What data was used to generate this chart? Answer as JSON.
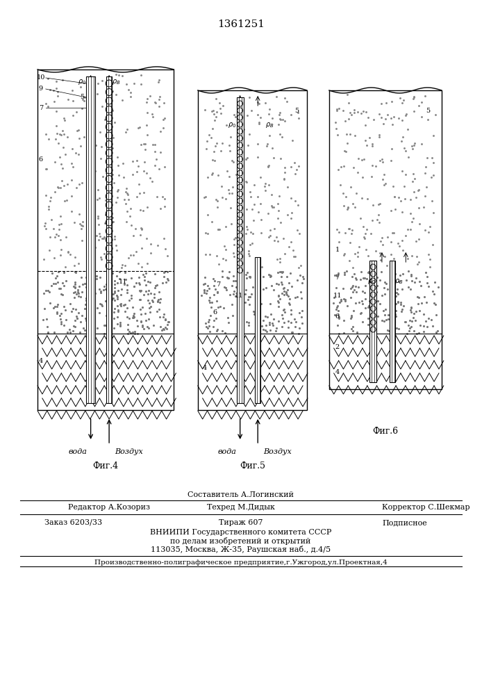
{
  "patent_number": "1361251",
  "bg_color": "#ffffff",
  "fig_color": "#f5f5f0",
  "title_fontsize": 11,
  "body_fontsize": 8.5,
  "footer_fontsize": 8,
  "small_fontsize": 7.5,
  "fig4_label": "Фиг.4",
  "fig5_label": "Фиг.5",
  "fig6_label": "Фиг.6",
  "fig4_voda": "вода",
  "fig4_vozdukh": "Воздух",
  "fig5_voda": "вода",
  "fig5_vozdukh": "Воздух",
  "footer_line1_left": "Редактор А.Козориз",
  "footer_line1_center": "Техред М.Дидык",
  "footer_line1_center_top": "Составитель А.Логинский",
  "footer_line1_right": "Корректор С.Шекмар",
  "footer_line2_col1": "Заказ 6203/33",
  "footer_line2_col2": "Тираж 607",
  "footer_line2_col3": "Подписное",
  "footer_line3": "ВНИИПИ Государственного комитета СССР",
  "footer_line4": "по делам изобретений и открытий",
  "footer_line5": "113035, Москва, Ж-35, Раушская наб., д.4/5",
  "footer_bottom": "Производственно-полиграфическое предприятие,г.Ужгород,ул.Проектная,4"
}
